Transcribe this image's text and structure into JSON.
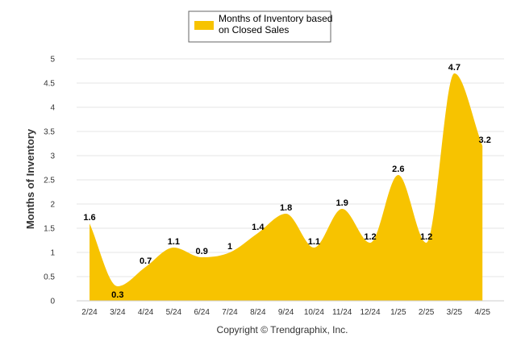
{
  "chart_data": {
    "type": "area",
    "title": "",
    "xlabel": "",
    "ylabel": "Months of Inventory",
    "categories": [
      "2/24",
      "3/24",
      "4/24",
      "5/24",
      "6/24",
      "7/24",
      "8/24",
      "9/24",
      "10/24",
      "11/24",
      "12/24",
      "1/25",
      "2/25",
      "3/25",
      "4/25"
    ],
    "series": [
      {
        "name_lines": [
          "Months of Inventory based",
          "on Closed Sales"
        ],
        "values": [
          1.6,
          0.3,
          0.7,
          1.1,
          0.9,
          1,
          1.4,
          1.8,
          1.1,
          1.9,
          1.2,
          2.6,
          1.2,
          4.7,
          3.2
        ],
        "labels": [
          "1.6",
          "0.3",
          "0.7",
          "1.1",
          "0.9",
          "1",
          "1.4",
          "1.8",
          "1.1",
          "1.9",
          "1.2",
          "2.6",
          "1.2",
          "4.7",
          "3.2"
        ],
        "color": "#F7C300"
      }
    ],
    "ylim": [
      0,
      5
    ],
    "yticks": [
      "0",
      "0.5",
      "1",
      "1.5",
      "2",
      "2.5",
      "3",
      "3.5",
      "4",
      "4.5",
      "5"
    ],
    "grid": true,
    "legend": "top-center"
  },
  "footer": {
    "copyright": "Copyright © Trendgraphix, Inc."
  }
}
